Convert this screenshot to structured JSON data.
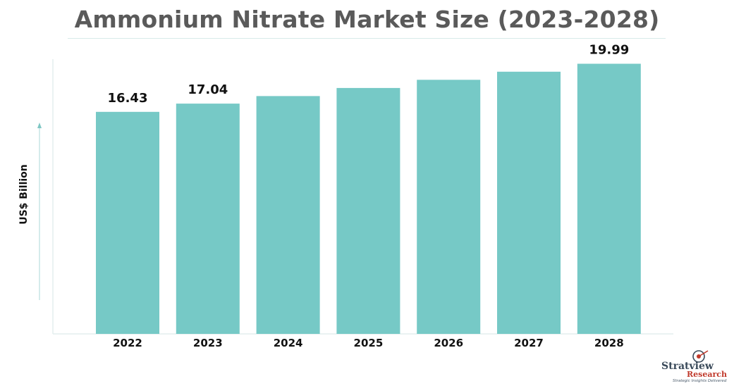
{
  "chart_data": {
    "type": "bar",
    "title": "Ammonium Nitrate Market Size (2023-2028)",
    "ylabel": "US$ Billion",
    "xlabel": "",
    "categories": [
      "2022",
      "2023",
      "2024",
      "2025",
      "2026",
      "2027",
      "2028"
    ],
    "values": [
      16.43,
      17.04,
      17.6,
      18.2,
      18.8,
      19.4,
      19.99
    ],
    "data_labels": [
      "16.43",
      "17.04",
      "",
      "",
      "",
      "",
      "19.99"
    ],
    "ylim": [
      0,
      24.5
    ],
    "grid": false,
    "bar_color": "#76c9c6"
  },
  "logo": {
    "word1": "Stratview",
    "word2": "Research",
    "tagline": "Strategic Insights Delivered"
  }
}
